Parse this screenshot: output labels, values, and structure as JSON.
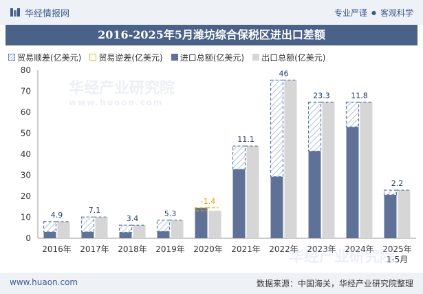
{
  "header": {
    "brand_name": "华经情报网",
    "tagline_left": "专业严谨",
    "tagline_right": "客观科学"
  },
  "watermark": {
    "text": "华经产业研究院",
    "url": "www.huaon.com"
  },
  "legend": {
    "surplus": "贸易顺差(亿美元)",
    "deficit": "贸易逆差(亿美元)",
    "import": "进口总额(亿美元)",
    "export": "出口总额(亿美元)"
  },
  "footer": {
    "url": "www.huaon.com",
    "source": "数据来源：中国海关，华经产业研究院整理"
  },
  "colors": {
    "import": "#5f7197",
    "export": "#d6d6d6",
    "surplus_border": "#5a7aa8",
    "deficit_border": "#f0b400",
    "title_bg": "#4a6188"
  },
  "chart_data": {
    "type": "bar",
    "title": "2016-2025年5月潍坊综合保税区进出口差额",
    "categories": [
      "2016年",
      "2017年",
      "2018年",
      "2019年",
      "2020年",
      "2021年",
      "2022年",
      "2023年",
      "2024年",
      "2025年\n1-5月"
    ],
    "ylim": [
      0,
      80
    ],
    "yticks": [
      0,
      10,
      20,
      30,
      40,
      50,
      60,
      70,
      80
    ],
    "series": [
      {
        "name": "进口总额(亿美元)",
        "values": [
          3.0,
          3.0,
          2.8,
          3.3,
          14.5,
          32.8,
          29.3,
          41.5,
          53.0,
          20.7
        ]
      },
      {
        "name": "出口总额(亿美元)",
        "values": [
          7.9,
          10.1,
          6.2,
          8.6,
          13.1,
          43.9,
          75.3,
          64.8,
          64.8,
          22.9
        ]
      }
    ],
    "balance": {
      "values": [
        4.9,
        7.1,
        3.4,
        5.3,
        -1.4,
        11.1,
        46,
        23.3,
        11.8,
        2.2
      ],
      "labels": [
        "4.9",
        "7.1",
        "3.4",
        "5.3",
        "-1.4",
        "11.1",
        "46",
        "23.3",
        "11.8",
        "2.2"
      ]
    },
    "grid": false,
    "legend_position": "top"
  }
}
